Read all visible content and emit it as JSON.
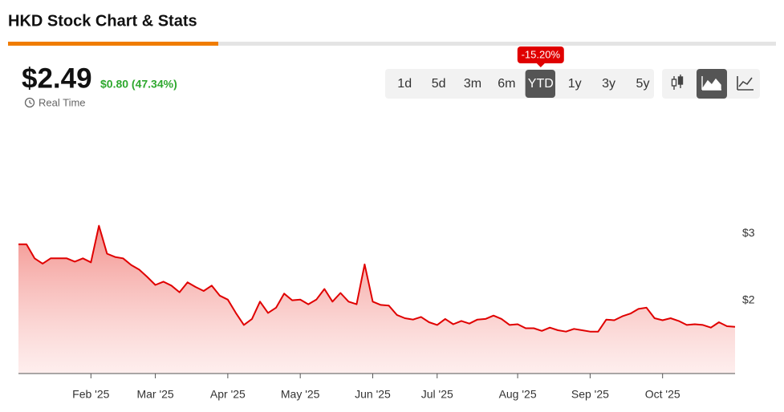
{
  "header": {
    "title": "HKD Stock Chart & Stats"
  },
  "quote": {
    "price": "$2.49",
    "change": "$0.80 (47.34%)",
    "realtime": "Real Time"
  },
  "ranges": {
    "buttons": [
      "1d",
      "5d",
      "3m",
      "6m",
      "YTD",
      "1y",
      "3y",
      "5y"
    ],
    "active": 4,
    "badge": "-15.20%"
  },
  "chart_data": {
    "type": "line",
    "fill": true,
    "color": "#e00000",
    "categories": [
      null,
      null,
      null,
      null,
      null,
      null,
      null,
      null,
      null,
      "Feb '25",
      null,
      null,
      null,
      null,
      null,
      null,
      null,
      "Mar '25",
      null,
      null,
      null,
      null,
      null,
      null,
      null,
      null,
      "Apr '25",
      null,
      null,
      null,
      null,
      null,
      null,
      null,
      null,
      "May '25",
      null,
      null,
      null,
      null,
      null,
      null,
      null,
      null,
      "Jun '25",
      null,
      null,
      null,
      null,
      null,
      null,
      null,
      "Jul '25",
      null,
      null,
      null,
      null,
      null,
      null,
      null,
      null,
      null,
      "Aug '25",
      null,
      null,
      null,
      null,
      null,
      null,
      null,
      null,
      "Sep '25",
      null,
      null,
      null,
      null,
      null,
      null,
      null,
      null,
      "Oct '25",
      null,
      null,
      null,
      null,
      null,
      null,
      null,
      null,
      null
    ],
    "values": [
      2.84,
      2.84,
      2.63,
      2.55,
      2.63,
      2.63,
      2.63,
      2.58,
      2.63,
      2.57,
      3.12,
      2.7,
      2.65,
      2.63,
      2.53,
      2.46,
      2.35,
      2.23,
      2.28,
      2.22,
      2.12,
      2.27,
      2.2,
      2.14,
      2.22,
      2.07,
      2.01,
      1.81,
      1.63,
      1.72,
      1.98,
      1.81,
      1.89,
      2.1,
      2.0,
      2.01,
      1.94,
      2.01,
      2.17,
      1.98,
      2.11,
      1.98,
      1.94,
      2.54,
      1.98,
      1.93,
      1.92,
      1.78,
      1.73,
      1.71,
      1.75,
      1.67,
      1.63,
      1.72,
      1.64,
      1.69,
      1.65,
      1.71,
      1.72,
      1.77,
      1.72,
      1.63,
      1.64,
      1.58,
      1.58,
      1.54,
      1.59,
      1.55,
      1.53,
      1.57,
      1.55,
      1.53,
      1.53,
      1.71,
      1.7,
      1.76,
      1.8,
      1.87,
      1.89,
      1.73,
      1.7,
      1.73,
      1.69,
      1.63,
      1.64,
      1.63,
      1.59,
      1.67,
      1.61,
      1.6
    ],
    "ylim": [
      0.9,
      3.5
    ],
    "yticks": [
      {
        "value": 3,
        "label": "$3"
      },
      {
        "value": 2,
        "label": "$2"
      }
    ]
  }
}
